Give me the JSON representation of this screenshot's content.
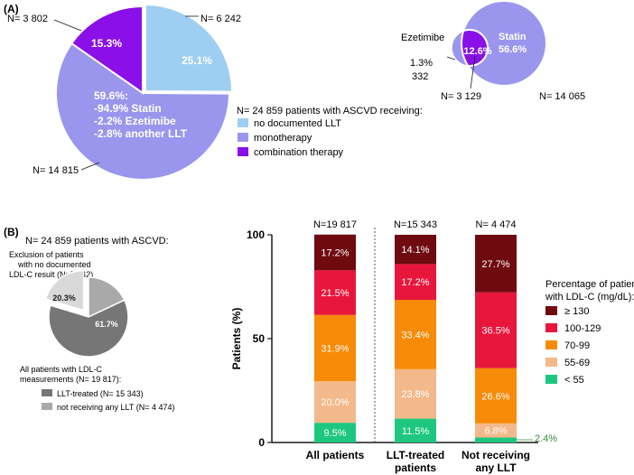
{
  "panel_a": {
    "label": "(A)",
    "legend": {
      "title": "N= 24 859 patients with ASCVD receiving:",
      "items": [
        {
          "label": "no documented LLT",
          "color": "#9ecff2"
        },
        {
          "label": "monotherapy",
          "color": "#9a96ee"
        },
        {
          "label": "combination therapy",
          "color": "#8b0fe8"
        }
      ]
    },
    "callouts": {
      "n_combination": "N= 3 802",
      "n_no_llt": "N= 6 242",
      "n_mono": "N= 14 815"
    },
    "mono_breakdown": [
      "59.6%:",
      "-94.9% Statin",
      "-2.2% Ezetimibe",
      "-2.8%  another LLT"
    ],
    "venn": {
      "ezetimibe_label": "Ezetimibe",
      "statin_label": "Statin",
      "statin_pct": "56.6%",
      "overlap_pct": "12.6%",
      "ezetimibe_pct": "1.3%",
      "n_ezetimibe": "332",
      "n_overlap": "N= 3 129",
      "n_statin": "N= 14 065"
    }
  },
  "panel_b": {
    "label": "(B)",
    "pie_title": "N= 24 859 patients with ASCVD:",
    "exclusion_text": [
      "Exclusion of patients",
      "with no documented",
      "LDL-C result (N=5 042)"
    ],
    "measured_text": [
      "All patients with LDL-C",
      "measurements (N= 19 817):"
    ],
    "legend": [
      {
        "label": "LLT-treated (N= 15 343)",
        "color": "#767676"
      },
      {
        "label": "not receiving any LLT (N= 4 474)",
        "color": "#a9a9a9"
      }
    ],
    "stack_legend_title": [
      "Percentage of patients",
      "with LDL-C (mg/dL):"
    ]
  },
  "chart_data": [
    {
      "type": "pie",
      "title": "N= 24 859 patients with ASCVD receiving:",
      "categories": [
        "no documented LLT",
        "monotherapy",
        "combination therapy"
      ],
      "values": [
        25.1,
        59.6,
        15.3
      ],
      "labels": [
        "25.1%",
        "",
        "15.3%"
      ],
      "colors": [
        "#9ecff2",
        "#9a96ee",
        "#8b0fe8"
      ]
    },
    {
      "type": "pie",
      "title": "N= 24 859 patients with ASCVD:",
      "categories": [
        "no documented LDL-C",
        "not receiving any LLT",
        "LLT-treated"
      ],
      "values": [
        20.3,
        18.0,
        61.7
      ],
      "labels": [
        "20.3%",
        "18.0%",
        "61.7%"
      ],
      "colors": [
        "#d9d9d9",
        "#a9a9a9",
        "#767676"
      ]
    },
    {
      "type": "bar",
      "stacked": true,
      "ylabel": "Patients (%)",
      "ylim": [
        0,
        100
      ],
      "yticks": [
        0,
        50,
        100
      ],
      "categories": [
        [
          "All patients"
        ],
        [
          "LLT-treated",
          "patients"
        ],
        [
          "Not receiving",
          "any LLT"
        ]
      ],
      "n_labels": [
        "N=19 817",
        "N=15 343",
        "N= 4 474"
      ],
      "series": [
        {
          "name": "< 55",
          "color": "#1ec77f",
          "values": [
            9.5,
            11.5,
            2.4
          ],
          "labels": [
            "9.5%",
            "11.5%",
            "2.4%"
          ]
        },
        {
          "name": "55-69",
          "color": "#f4b98a",
          "values": [
            20.0,
            23.8,
            6.8
          ],
          "labels": [
            "20.0%",
            "23.8%",
            "6.8%"
          ]
        },
        {
          "name": "70-99",
          "color": "#f78a07",
          "values": [
            31.9,
            33.4,
            26.6
          ],
          "labels": [
            "31.9%",
            "33.4%",
            "26.6%"
          ]
        },
        {
          "name": "100-129",
          "color": "#e9163c",
          "values": [
            21.5,
            17.2,
            36.5
          ],
          "labels": [
            "21.5%",
            "17.2%",
            "36.5%"
          ]
        },
        {
          "name": "≥ 130",
          "color": "#6e0a10",
          "values": [
            17.2,
            14.1,
            27.7
          ],
          "labels": [
            "17.2%",
            "14.1%",
            "27.7%"
          ]
        }
      ]
    }
  ]
}
